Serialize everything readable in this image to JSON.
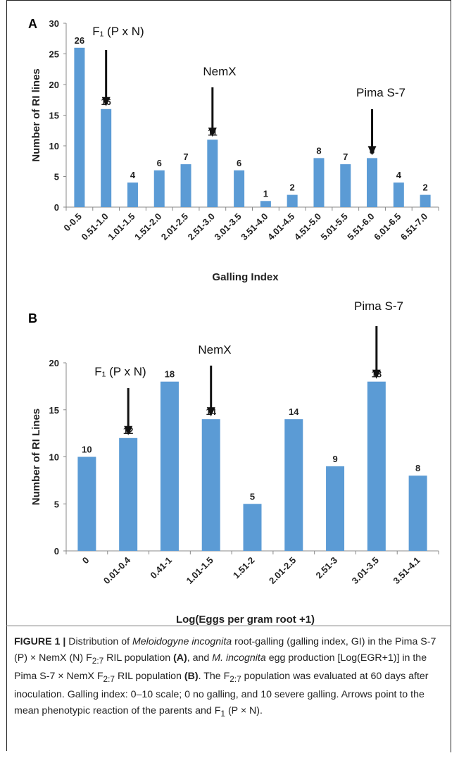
{
  "chart_data": [
    {
      "type": "bar",
      "panel": "A",
      "categories": [
        "0-0.5",
        "0.51-1.0",
        "1.01-1.5",
        "1.51-2.0",
        "2.01-2.5",
        "2.51-3.0",
        "3.01-3.5",
        "3.51-4.0",
        "4.01-4.5",
        "4.51-5.0",
        "5.01-5.5",
        "5.51-6.0",
        "6.01-6.5",
        "6.51-7.0"
      ],
      "values": [
        26,
        16,
        4,
        6,
        7,
        11,
        6,
        1,
        2,
        8,
        7,
        8,
        4,
        2
      ],
      "xlabel": "Galling Index",
      "ylabel": "Number of RI lines",
      "ylim": [
        0,
        30
      ],
      "yticks": [
        0,
        5,
        10,
        15,
        20,
        25,
        30
      ],
      "bar_color": "#5b9bd5",
      "grid": false,
      "annotations": [
        {
          "label": "F₁ (P x N)",
          "category_index": 1
        },
        {
          "label": "NemX",
          "category_index": 5
        },
        {
          "label": "Pima S-7",
          "category_index": 11
        }
      ]
    },
    {
      "type": "bar",
      "panel": "B",
      "categories": [
        "0",
        "0.01-0.4",
        "0.41-1",
        "1.01-1.5",
        "1.51-2",
        "2.01-2.5",
        "2.51-3",
        "3.01-3.5",
        "3.51-4.1"
      ],
      "values": [
        10,
        12,
        18,
        14,
        5,
        14,
        9,
        18,
        8
      ],
      "xlabel": "Log(Eggs per gram root +1)",
      "ylabel": "Number of RI Lines",
      "ylim": [
        0,
        20
      ],
      "yticks": [
        0,
        5,
        10,
        15,
        20
      ],
      "bar_color": "#5b9bd5",
      "grid": false,
      "annotations": [
        {
          "label": "F₁ (P x N)",
          "category_index": 1
        },
        {
          "label": "NemX",
          "category_index": 3
        },
        {
          "label": "Pima S-7",
          "category_index": 7
        }
      ]
    }
  ],
  "caption": {
    "figure_label": "FIGURE 1 |",
    "t1": " Distribution of ",
    "i1": "Meloidogyne incognita",
    "t2": " root-galling (galling index, GI) in the Pima S-7 (P) × NemX (N) F",
    "s1": "2:7",
    "t3": " RIL population ",
    "b1": "(A)",
    "t4": ", and ",
    "i2": "M. incognita",
    "t5": " egg production [Log(EGR+1)] in the Pima S-7 × NemX F",
    "s2": "2:7",
    "t6": " RIL population ",
    "b2": "(B)",
    "t7": ". The F",
    "s3": "2:7",
    "t8": " population was evaluated at 60 days after inoculation. Galling index: 0–10 scale; 0 no galling, and 10 severe galling. Arrows point to the mean phenotypic reaction of the parents and F",
    "s4": "1",
    "t9": " (P × N)."
  }
}
